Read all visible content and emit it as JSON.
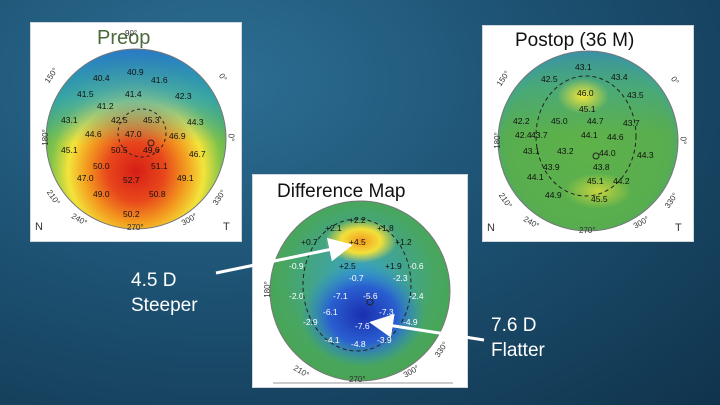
{
  "colors": {
    "red": "#e23a1f",
    "orange": "#f28a1c",
    "yellow": "#f6e43a",
    "green": "#5fae47",
    "cyan": "#2bb0d8",
    "blue": "#2a5fd0",
    "darkblue": "#1a2fb0",
    "background": "#1d5273"
  },
  "maps": [
    {
      "id": "preop",
      "title": "Preop",
      "axis": {
        "top": "90°",
        "left_top": "150°",
        "right_top": "0°",
        "left": "180°",
        "right": "0°",
        "left_bottom": "210°",
        "right_bottom": "330°",
        "bottom_left": "240°",
        "bottom": "270°",
        "bottom_right": "300°",
        "nasal": "N",
        "temporal": "T"
      },
      "values": [
        "40.9",
        "40.4",
        "41.6",
        "41.5",
        "41.4",
        "42.3",
        "41.2",
        "43.1",
        "42.5",
        "45.3",
        "44.3",
        "44.6",
        "47.0",
        "46.9",
        "45.1",
        "50.5",
        "49.6",
        "46.7",
        "50.0",
        "51.1",
        "47.0",
        "52.7",
        "49.1",
        "49.0",
        "50.8",
        "50.2"
      ]
    },
    {
      "id": "postop",
      "title": "Postop (36 M)",
      "axis": {
        "left_top": "150°",
        "right_top": "0°",
        "left": "180°",
        "right": "0°",
        "left_bottom": "210°",
        "right_bottom": "330°",
        "bottom_left": "240°",
        "bottom": "270°",
        "bottom_right": "300°",
        "nasal": "N",
        "temporal": "T"
      },
      "values": [
        "43.1",
        "42.5",
        "43.4",
        "46.0",
        "43.5",
        "42.2",
        "45.1",
        "42.4",
        "45.0",
        "44.7",
        "43.7",
        "43.7",
        "44.1",
        "44.6",
        "43.1",
        "43.2",
        "44.0",
        "44.3",
        "43.9",
        "43.8",
        "44.1",
        "45.1",
        "44.2",
        "44.9",
        "45.5"
      ]
    },
    {
      "id": "difference",
      "title": "Difference Map",
      "axis": {
        "left": "180°",
        "bottom_left": "210°",
        "bottom": "270°",
        "bottom_right": "300°",
        "right_bottom": "330°"
      },
      "values": [
        "+2.2",
        "+2.1",
        "+1.8",
        "+0.7",
        "+4.5",
        "+1.2",
        "-0.9",
        "+2.5",
        "+1.9",
        "-0.6",
        "-0.7",
        "-2.3",
        "-2.0",
        "-7.1",
        "-5.6",
        "-2.4",
        "-6.1",
        "-7.3",
        "-2.9",
        "-7.6",
        "-4.9",
        "-4.1",
        "-4.8",
        "-3.9"
      ]
    }
  ],
  "callouts": {
    "steeper": {
      "value": "4.5 D",
      "label": "Steeper"
    },
    "flatter": {
      "value": "7.6 D",
      "label": "Flatter"
    }
  }
}
